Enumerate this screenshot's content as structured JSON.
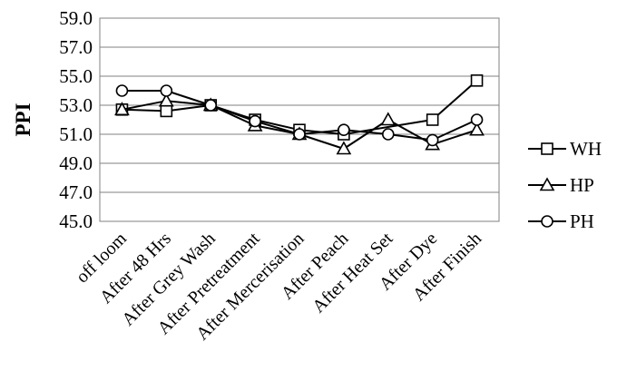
{
  "chart_data": {
    "type": "line",
    "title": "",
    "xlabel": "",
    "ylabel": "PPI",
    "ylim": [
      45.0,
      59.0
    ],
    "ytick_step": 2,
    "ytick_labels": [
      "45.0",
      "47.0",
      "49.0",
      "51.0",
      "53.0",
      "55.0",
      "57.0",
      "59.0"
    ],
    "grid": true,
    "legend_position": "right",
    "categories": [
      "off loom",
      "After 48 Hrs",
      "After Grey Wash",
      "After Pretreatment",
      "After Mercerisation",
      "After Peach",
      "After Heat Set",
      "After Dye",
      "After Finish"
    ],
    "series": [
      {
        "name": "WH",
        "marker": "square",
        "values": [
          52.7,
          52.6,
          53.0,
          52.0,
          51.3,
          51.0,
          null,
          52.0,
          54.7
        ],
        "gap_connect": [
          5,
          7
        ]
      },
      {
        "name": "HP",
        "marker": "triangle",
        "values": [
          52.7,
          53.3,
          53.0,
          51.6,
          51.0,
          50.0,
          52.0,
          50.3,
          51.3
        ]
      },
      {
        "name": "PH",
        "marker": "circle",
        "values": [
          54.0,
          54.0,
          53.0,
          51.9,
          51.0,
          51.3,
          51.0,
          50.6,
          52.0
        ]
      }
    ],
    "colors": {
      "line": "#000000",
      "grid": "#808080",
      "background": "#ffffff"
    }
  }
}
